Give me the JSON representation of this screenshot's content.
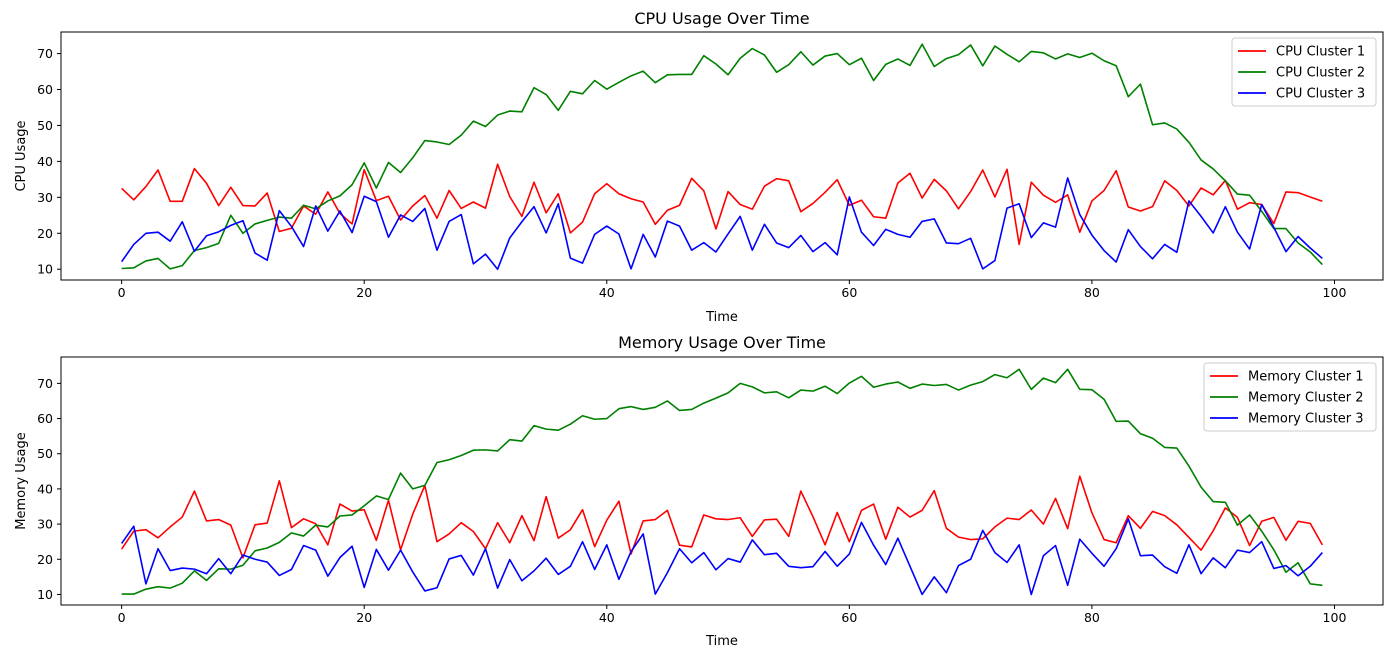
{
  "chart_data": [
    {
      "type": "line",
      "title": "CPU Usage Over Time",
      "xlabel": "Time",
      "ylabel": "CPU Usage",
      "xlim": [
        -5,
        104
      ],
      "ylim": [
        7,
        76
      ],
      "xticks": [
        0,
        20,
        40,
        60,
        80,
        100
      ],
      "yticks": [
        10,
        20,
        30,
        40,
        50,
        60,
        70
      ],
      "legend_position": "top-right",
      "series": [
        {
          "name": "CPU Cluster 1",
          "color": "#ff0000",
          "values": [
            32.5,
            29.3,
            33.0,
            37.6,
            28.9,
            28.9,
            38.0,
            33.9,
            27.7,
            32.8,
            27.7,
            27.6,
            31.2,
            20.5,
            21.4,
            27.6,
            25.3,
            31.5,
            25.5,
            22.6,
            37.7,
            29.1,
            30.3,
            23.7,
            27.6,
            30.5,
            24.2,
            31.9,
            26.9,
            28.7,
            27.0,
            39.2,
            30.2,
            24.7,
            34.2,
            25.7,
            31.0,
            20.1,
            23.1,
            31.0,
            33.8,
            31.0,
            29.6,
            28.7,
            22.5,
            26.4,
            27.8,
            35.3,
            31.8,
            21.2,
            31.6,
            28.0,
            26.7,
            33.1,
            35.2,
            34.6,
            26.0,
            28.3,
            31.4,
            34.9,
            27.8,
            29.2,
            24.6,
            24.2,
            34.0,
            36.7,
            29.8,
            35.0,
            31.8,
            26.8,
            31.6,
            37.6,
            30.1,
            37.8,
            16.9,
            34.2,
            30.6,
            28.6,
            30.7,
            20.3,
            29.0,
            31.9,
            37.4,
            27.3,
            26.2,
            27.4,
            34.6,
            31.9,
            27.6,
            32.6,
            30.7,
            34.7,
            26.7,
            28.5,
            28.0,
            22.7,
            31.5,
            31.3,
            30.1,
            28.9
          ]
        },
        {
          "name": "CPU Cluster 2",
          "color": "#008000",
          "values": [
            10.2,
            10.4,
            12.3,
            13.0,
            10.1,
            11.0,
            15.2,
            16.0,
            17.2,
            25.0,
            20.0,
            22.6,
            23.6,
            24.5,
            24.2,
            27.8,
            26.8,
            29.0,
            30.4,
            33.5,
            39.6,
            32.6,
            39.7,
            36.9,
            41.0,
            45.8,
            45.4,
            44.7,
            47.3,
            51.2,
            49.7,
            52.9,
            54.0,
            53.8,
            60.5,
            58.6,
            54.2,
            59.5,
            58.8,
            62.5,
            60.1,
            62.0,
            63.8,
            65.1,
            61.9,
            64.1,
            64.2,
            64.2,
            69.4,
            67.1,
            64.1,
            68.7,
            71.4,
            69.6,
            64.8,
            66.9,
            70.5,
            66.8,
            69.3,
            70.0,
            66.9,
            68.7,
            62.5,
            67.0,
            68.5,
            66.7,
            72.6,
            66.4,
            68.6,
            69.7,
            72.4,
            66.6,
            72.1,
            69.8,
            67.7,
            70.6,
            70.2,
            68.5,
            69.9,
            68.9,
            70.1,
            68.0,
            66.6,
            58.0,
            61.5,
            50.2,
            50.7,
            49.0,
            45.3,
            40.4,
            37.9,
            34.6,
            30.9,
            30.6,
            26.1,
            21.3,
            21.3,
            17.3,
            14.8,
            11.3
          ]
        },
        {
          "name": "CPU Cluster 3",
          "color": "#0000ff",
          "values": [
            12.1,
            16.9,
            20.0,
            20.3,
            17.8,
            23.2,
            15.0,
            19.3,
            20.4,
            22.2,
            23.5,
            14.5,
            12.5,
            26.3,
            21.9,
            16.3,
            27.6,
            20.6,
            26.2,
            20.2,
            30.3,
            28.8,
            18.9,
            25.1,
            23.3,
            26.9,
            15.3,
            23.3,
            25.2,
            11.5,
            14.2,
            10.0,
            18.7,
            23.2,
            27.4,
            20.1,
            28.2,
            13.1,
            11.7,
            19.7,
            22.0,
            19.8,
            10.1,
            19.7,
            13.4,
            23.4,
            22.0,
            15.3,
            17.4,
            14.8,
            19.8,
            24.7,
            15.3,
            22.5,
            17.3,
            16.0,
            19.4,
            14.9,
            17.4,
            14.0,
            30.1,
            20.3,
            16.6,
            21.1,
            19.7,
            18.9,
            23.3,
            24.0,
            17.3,
            17.1,
            18.6,
            10.1,
            12.4,
            27.0,
            28.2,
            18.8,
            22.9,
            21.7,
            35.4,
            25.2,
            19.5,
            15.2,
            12.0,
            21.0,
            16.3,
            12.9,
            16.9,
            14.7,
            29.0,
            24.7,
            20.1,
            27.4,
            20.3,
            15.6,
            28.0,
            21.6,
            14.9,
            19.1,
            15.9,
            13.0
          ]
        }
      ]
    },
    {
      "type": "line",
      "title": "Memory Usage Over Time",
      "xlabel": "Time",
      "ylabel": "Memory Usage",
      "xlim": [
        -5,
        104
      ],
      "ylim": [
        7,
        77.5
      ],
      "xticks": [
        0,
        20,
        40,
        60,
        80,
        100
      ],
      "yticks": [
        10,
        20,
        30,
        40,
        50,
        60,
        70
      ],
      "legend_position": "top-right",
      "series": [
        {
          "name": "Memory Cluster 1",
          "color": "#ff0000",
          "values": [
            22.9,
            28.0,
            28.4,
            26.1,
            29.2,
            32.0,
            39.4,
            30.9,
            31.3,
            29.7,
            20.4,
            29.8,
            30.3,
            42.3,
            29.0,
            31.5,
            30.1,
            24.1,
            35.7,
            33.7,
            34.1,
            25.4,
            36.8,
            22.7,
            32.8,
            41.0,
            25.0,
            27.2,
            30.4,
            27.9,
            23.0,
            30.4,
            24.7,
            32.4,
            25.3,
            37.8,
            26.0,
            28.4,
            34.1,
            23.6,
            31.1,
            36.5,
            21.5,
            30.9,
            31.3,
            33.9,
            24.0,
            23.5,
            32.6,
            31.5,
            31.3,
            31.8,
            26.5,
            31.2,
            31.4,
            26.5,
            39.4,
            32.1,
            24.1,
            33.3,
            25.0,
            33.9,
            35.7,
            25.7,
            34.8,
            32.0,
            33.9,
            39.5,
            28.8,
            26.3,
            25.6,
            25.8,
            29.2,
            31.7,
            31.3,
            34.0,
            30.0,
            37.3,
            28.7,
            43.6,
            33.2,
            25.6,
            24.7,
            32.4,
            28.8,
            33.6,
            32.4,
            29.8,
            26.2,
            22.6,
            28.1,
            34.6,
            31.9,
            23.9,
            30.8,
            31.9,
            25.4,
            30.8,
            30.2,
            24.1
          ]
        },
        {
          "name": "Memory Cluster 2",
          "color": "#008000",
          "values": [
            10.1,
            10.1,
            11.5,
            12.2,
            11.8,
            13.2,
            16.7,
            14.0,
            17.3,
            17.2,
            18.3,
            22.4,
            23.2,
            24.8,
            27.5,
            26.6,
            29.7,
            29.2,
            32.3,
            32.6,
            35.2,
            38.0,
            37.0,
            44.5,
            40.0,
            41.0,
            47.5,
            48.3,
            49.5,
            51.0,
            51.1,
            50.8,
            54.0,
            53.6,
            58.0,
            57.0,
            56.7,
            58.4,
            60.8,
            59.8,
            60.0,
            62.8,
            63.4,
            62.6,
            63.2,
            65.0,
            62.3,
            62.6,
            64.4,
            65.8,
            67.3,
            70.0,
            69.0,
            67.3,
            67.6,
            65.9,
            68.1,
            67.8,
            69.2,
            67.1,
            70.1,
            72.0,
            68.9,
            69.8,
            70.4,
            68.6,
            69.8,
            69.4,
            69.7,
            68.1,
            69.5,
            70.5,
            72.5,
            71.6,
            74.0,
            68.3,
            71.5,
            70.2,
            74.0,
            68.3,
            68.2,
            65.5,
            59.2,
            59.3,
            55.7,
            54.4,
            51.8,
            51.6,
            46.5,
            40.5,
            36.4,
            36.2,
            29.7,
            32.6,
            28.0,
            22.7,
            16.3,
            19.0,
            13.0,
            12.6
          ]
        },
        {
          "name": "Memory Cluster 3",
          "color": "#0000ff",
          "values": [
            24.5,
            29.4,
            13.0,
            23.0,
            16.8,
            17.5,
            17.2,
            15.9,
            20.2,
            15.9,
            21.2,
            20.0,
            19.2,
            15.4,
            17.1,
            23.9,
            22.6,
            15.2,
            20.5,
            23.7,
            12.0,
            22.8,
            16.9,
            22.6,
            16.4,
            11.0,
            11.9,
            20.1,
            21.1,
            15.5,
            23.0,
            11.8,
            19.9,
            13.9,
            16.7,
            20.3,
            15.7,
            18.0,
            25.0,
            17.1,
            24.1,
            14.3,
            22.2,
            27.2,
            10.1,
            16.2,
            23.0,
            19.0,
            21.9,
            17.0,
            20.2,
            19.2,
            25.5,
            21.3,
            21.7,
            18.0,
            17.6,
            17.9,
            22.2,
            18.0,
            21.5,
            30.5,
            24.0,
            18.5,
            26.0,
            18.0,
            10.0,
            15.0,
            10.5,
            18.2,
            20.0,
            28.2,
            21.9,
            19.1,
            24.1,
            10.0,
            21.0,
            23.9,
            12.6,
            25.7,
            21.7,
            18.0,
            23.0,
            31.5,
            21.0,
            21.2,
            17.9,
            16.0,
            24.1,
            15.9,
            20.4,
            17.6,
            22.6,
            21.9,
            25.0,
            17.4,
            18.2,
            15.3,
            18.0,
            21.9
          ]
        }
      ]
    }
  ]
}
